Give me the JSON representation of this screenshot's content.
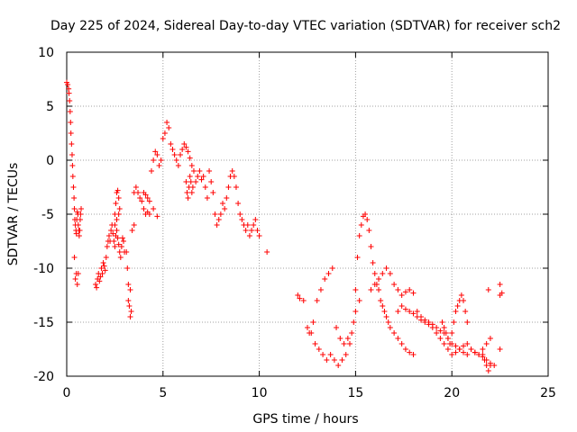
{
  "chart_data": {
    "type": "scatter",
    "title": "Day 225 of 2024, Sidereal Day-to-day VTEC variation (SDTVAR) for receiver sch2",
    "xlabel": "GPS time / hours",
    "ylabel": "SDTVAR / TECUs",
    "xlim": [
      0,
      25
    ],
    "ylim": [
      -20,
      10
    ],
    "xticks": [
      "0",
      "5",
      "10",
      "15",
      "20",
      "25"
    ],
    "yticks": [
      "10",
      "5",
      "0",
      "-5",
      "-10",
      "-15",
      "-20"
    ],
    "grid": true,
    "marker": "+",
    "color": "#ff0000",
    "series": [
      {
        "name": "sch2",
        "x": [
          0.0,
          0.05,
          0.1,
          0.12,
          0.15,
          0.18,
          0.2,
          0.22,
          0.25,
          0.28,
          0.3,
          0.32,
          0.35,
          0.38,
          0.4,
          0.42,
          0.45,
          0.48,
          0.5,
          0.52,
          0.55,
          0.58,
          0.6,
          0.62,
          0.65,
          0.68,
          0.7,
          0.72,
          0.75,
          0.4,
          0.45,
          0.5,
          0.55,
          0.6,
          1.5,
          1.55,
          1.6,
          1.65,
          1.7,
          1.75,
          1.8,
          1.85,
          1.9,
          1.95,
          2.0,
          2.05,
          2.1,
          2.15,
          2.2,
          2.25,
          2.3,
          2.35,
          2.4,
          2.45,
          2.5,
          2.55,
          2.6,
          2.65,
          2.7,
          2.75,
          2.8,
          2.85,
          2.9,
          2.95,
          3.0,
          2.5,
          2.55,
          2.6,
          2.65,
          2.7,
          2.75,
          2.5,
          2.6,
          2.7,
          3.1,
          3.15,
          3.2,
          3.25,
          3.3,
          3.35,
          3.2,
          3.3,
          3.4,
          3.5,
          3.5,
          3.6,
          3.7,
          3.8,
          3.9,
          4.0,
          4.1,
          4.2,
          4.3,
          4.5,
          4.7,
          4.0,
          4.1,
          4.2,
          4.3,
          4.4,
          4.5,
          4.6,
          4.7,
          4.8,
          4.9,
          5.0,
          5.1,
          5.2,
          5.3,
          5.4,
          5.5,
          5.6,
          5.7,
          5.8,
          5.9,
          6.0,
          6.1,
          6.2,
          6.3,
          6.4,
          6.5,
          6.6,
          6.2,
          6.25,
          6.3,
          6.35,
          6.4,
          6.45,
          6.5,
          6.55,
          6.7,
          6.8,
          6.9,
          7.0,
          7.1,
          7.2,
          7.3,
          7.4,
          7.5,
          7.6,
          7.7,
          7.8,
          7.9,
          8.0,
          8.1,
          8.2,
          8.3,
          8.4,
          8.5,
          8.6,
          8.7,
          8.8,
          8.9,
          9.0,
          9.1,
          9.2,
          9.3,
          9.4,
          9.5,
          9.6,
          9.7,
          9.8,
          9.9,
          10.0,
          10.4,
          12.0,
          12.1,
          12.3,
          12.5,
          12.7,
          12.9,
          13.1,
          13.3,
          13.5,
          13.7,
          13.9,
          14.1,
          14.3,
          14.5,
          14.7,
          14.9,
          15.0,
          15.1,
          15.2,
          15.3,
          15.4,
          15.5,
          15.6,
          15.7,
          15.8,
          15.9,
          16.0,
          16.1,
          16.2,
          16.3,
          16.4,
          16.5,
          16.6,
          16.7,
          16.8,
          17.0,
          17.2,
          17.4,
          17.6,
          17.8,
          18.0,
          18.2,
          18.4,
          18.6,
          18.8,
          19.0,
          19.2,
          19.4,
          19.6,
          19.8,
          20.0,
          20.2,
          20.4,
          20.6,
          20.8,
          21.0,
          21.2,
          21.4,
          21.6,
          21.8,
          22.0,
          22.2,
          22.5,
          12.6,
          12.8,
          13.0,
          13.2,
          13.4,
          13.6,
          13.8,
          14.0,
          14.2,
          14.4,
          14.6,
          14.8,
          15.0,
          15.2,
          15.8,
          16.0,
          16.2,
          16.4,
          16.6,
          16.8,
          17.0,
          17.2,
          17.4,
          17.6,
          17.8,
          18.0,
          17.2,
          17.4,
          17.6,
          17.8,
          18.0,
          18.2,
          18.4,
          18.6,
          18.8,
          19.0,
          19.2,
          19.4,
          19.6,
          19.8,
          20.0,
          20.2,
          20.4,
          20.6,
          20.8,
          21.0,
          21.2,
          21.4,
          21.6,
          21.8,
          22.0,
          19.5,
          19.6,
          19.7,
          19.8,
          19.9,
          20.0,
          20.1,
          20.2,
          20.3,
          20.4,
          20.5,
          20.6,
          20.7,
          20.8,
          21.6,
          21.7,
          21.8,
          21.9,
          22.0,
          21.9,
          22.5,
          22.5,
          22.6
        ],
        "y": [
          7.2,
          7.0,
          6.6,
          6.2,
          5.5,
          4.5,
          3.5,
          2.5,
          1.5,
          0.5,
          -0.5,
          -1.5,
          -2.5,
          -3.5,
          -4.5,
          -5.5,
          -6.0,
          -6.5,
          -6.8,
          -5.5,
          -4.8,
          -5.0,
          -6.0,
          -6.5,
          -7.0,
          -6.5,
          -5.5,
          -5.0,
          -4.5,
          -9.0,
          -11.0,
          -10.5,
          -11.5,
          -10.5,
          -11.5,
          -11.8,
          -11.0,
          -10.5,
          -11.2,
          -10.8,
          -10.0,
          -10.5,
          -9.5,
          -9.8,
          -10.2,
          -9.0,
          -8.0,
          -7.5,
          -7.0,
          -7.5,
          -6.5,
          -6.0,
          -6.8,
          -7.5,
          -8.0,
          -7.0,
          -6.5,
          -7.2,
          -7.8,
          -8.5,
          -9.0,
          -8.0,
          -7.2,
          -7.5,
          -8.5,
          -5.0,
          -4.0,
          -3.0,
          -2.8,
          -3.5,
          -4.5,
          -6.0,
          -5.5,
          -5.0,
          -8.5,
          -10.0,
          -11.5,
          -13.5,
          -14.5,
          -14.0,
          -13.0,
          -12.0,
          -6.5,
          -6.0,
          -3.0,
          -2.5,
          -3.0,
          -3.5,
          -3.8,
          -4.5,
          -5.0,
          -4.8,
          -5.0,
          -4.5,
          -5.2,
          -3.0,
          -3.2,
          -3.5,
          -3.8,
          -1.0,
          0.0,
          0.8,
          0.5,
          -0.5,
          0.0,
          2.0,
          2.5,
          3.5,
          3.0,
          1.5,
          1.0,
          0.5,
          0.0,
          -0.5,
          0.5,
          1.0,
          1.5,
          1.2,
          0.8,
          0.2,
          -0.5,
          -1.0,
          -2.0,
          -3.0,
          -3.5,
          -2.5,
          -1.5,
          -2.0,
          -3.0,
          -2.5,
          -2.0,
          -1.5,
          -1.0,
          -1.8,
          -1.5,
          -2.5,
          -3.5,
          -1.0,
          -2.0,
          -3.0,
          -5.0,
          -6.0,
          -5.5,
          -5.0,
          -4.0,
          -4.5,
          -3.5,
          -2.5,
          -1.5,
          -1.0,
          -1.5,
          -2.5,
          -4.0,
          -5.0,
          -5.5,
          -6.0,
          -6.5,
          -6.0,
          -7.0,
          -6.5,
          -6.0,
          -5.5,
          -6.5,
          -7.0,
          -8.5,
          -12.5,
          -12.8,
          -13.0,
          -15.5,
          -16.0,
          -17.0,
          -17.5,
          -18.0,
          -18.5,
          -18.0,
          -18.5,
          -19.0,
          -18.5,
          -18.0,
          -17.0,
          -15.0,
          -12.0,
          -9.0,
          -7.0,
          -6.0,
          -5.2,
          -5.0,
          -5.5,
          -6.5,
          -8.0,
          -9.5,
          -10.5,
          -11.5,
          -12.0,
          -13.0,
          -13.5,
          -14.0,
          -14.5,
          -15.0,
          -15.5,
          -16.0,
          -16.5,
          -17.0,
          -17.5,
          -17.8,
          -18.0,
          -14.0,
          -14.5,
          -14.8,
          -15.0,
          -15.2,
          -15.5,
          -15.8,
          -16.0,
          -16.5,
          -17.0,
          -17.2,
          -17.5,
          -17.8,
          -18.0,
          -17.5,
          -17.8,
          -18.0,
          -18.2,
          -18.5,
          -18.8,
          -19.0,
          -17.5,
          -16.0,
          -15.0,
          -13.0,
          -12.0,
          -11.0,
          -10.5,
          -10.0,
          -15.5,
          -16.5,
          -17.0,
          -16.5,
          -16.0,
          -14.0,
          -13.0,
          -12.0,
          -11.5,
          -11.0,
          -10.5,
          -10.0,
          -10.5,
          -11.5,
          -12.0,
          -12.5,
          -12.2,
          -12.0,
          -12.3,
          -14.0,
          -13.5,
          -13.8,
          -14.0,
          -14.2,
          -14.5,
          -14.8,
          -15.0,
          -15.2,
          -15.5,
          -16.0,
          -16.5,
          -17.0,
          -17.5,
          -18.0,
          -17.8,
          -17.5,
          -17.2,
          -17.0,
          -17.5,
          -17.8,
          -18.0,
          -17.5,
          -17.0,
          -16.5,
          -15.0,
          -15.5,
          -16.0,
          -16.5,
          -17.0,
          -16.0,
          -15.0,
          -14.0,
          -13.5,
          -13.0,
          -12.5,
          -13.0,
          -14.0,
          -15.0,
          -18.0,
          -18.5,
          -19.0,
          -19.5,
          -19.0,
          -12.0,
          -11.5,
          -12.5,
          -12.3
        ]
      }
    ]
  }
}
